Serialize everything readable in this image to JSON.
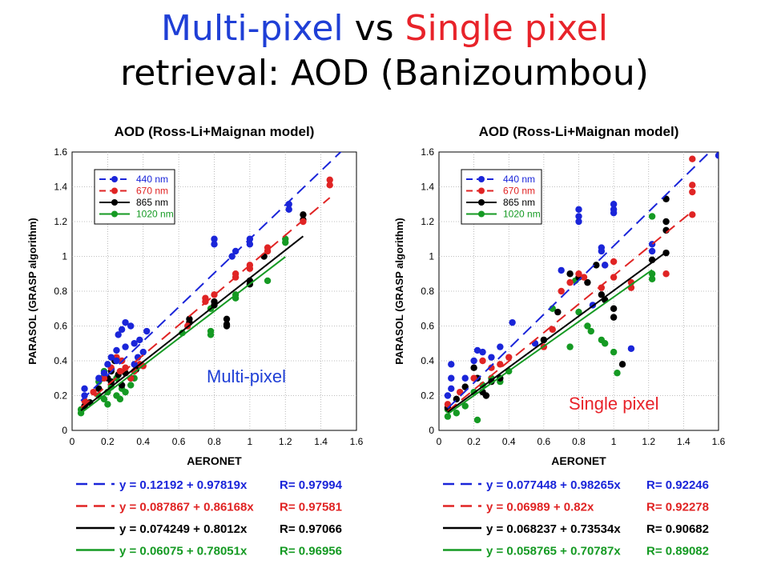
{
  "slide": {
    "title_part1": "Multi-pixel",
    "title_vs": " vs ",
    "title_part2": "Single pixel",
    "title_line2": "retrieval: AOD (Banizoumbou)",
    "title_colors": {
      "part1": "#1f3fd6",
      "part2": "#e8232a",
      "text": "#000000"
    }
  },
  "chart_data": [
    {
      "type": "scatter",
      "title": "AOD (Ross-Li+Maignan model)",
      "xlabel": "AERONET",
      "ylabel": "PARASOL (GRASP algorithm)",
      "xlim": [
        0,
        1.6
      ],
      "ylim": [
        0,
        1.6
      ],
      "xticks": [
        "0",
        "0.2",
        "0.4",
        "0.6",
        "0.8",
        "1",
        "1.2",
        "1.4",
        "1.6"
      ],
      "yticks": [
        "0",
        "0.2",
        "0.4",
        "0.6",
        "0.8",
        "1",
        "1.2",
        "1.4",
        "1.6"
      ],
      "grid": true,
      "legend_placement": "top-left",
      "annotation": "Multi-pixel",
      "annotation_color": "#1f3fd6",
      "series": [
        {
          "name": "440 nm",
          "color": "#1a25d9",
          "intercept": 0.12192,
          "slope": 0.97819,
          "fit_x": [
            0.05,
            1.6
          ],
          "equation": "y = 0.12192 + 0.97819x",
          "r": "R= 0.97994",
          "points": [
            [
              0.07,
              0.2
            ],
            [
              0.07,
              0.24
            ],
            [
              0.15,
              0.3
            ],
            [
              0.18,
              0.33
            ],
            [
              0.2,
              0.38
            ],
            [
              0.22,
              0.42
            ],
            [
              0.25,
              0.46
            ],
            [
              0.26,
              0.55
            ],
            [
              0.28,
              0.58
            ],
            [
              0.3,
              0.62
            ],
            [
              0.33,
              0.6
            ],
            [
              0.35,
              0.5
            ],
            [
              0.38,
              0.52
            ],
            [
              0.4,
              0.45
            ],
            [
              0.42,
              0.57
            ],
            [
              0.8,
              1.1
            ],
            [
              0.8,
              1.07
            ],
            [
              0.9,
              1.0
            ],
            [
              0.92,
              1.03
            ],
            [
              1.0,
              1.07
            ],
            [
              1.0,
              1.1
            ],
            [
              1.22,
              1.3
            ],
            [
              1.22,
              1.27
            ],
            [
              0.25,
              0.4
            ],
            [
              0.3,
              0.48
            ],
            [
              0.37,
              0.42
            ],
            [
              0.35,
              0.38
            ]
          ]
        },
        {
          "name": "670 nm",
          "color": "#e02424",
          "intercept": 0.087867,
          "slope": 0.86168,
          "fit_x": [
            0.05,
            1.45
          ],
          "equation": "y = 0.087867 + 0.86168x",
          "r": "R= 0.97581",
          "points": [
            [
              0.07,
              0.17
            ],
            [
              0.12,
              0.22
            ],
            [
              0.18,
              0.3
            ],
            [
              0.22,
              0.36
            ],
            [
              0.25,
              0.42
            ],
            [
              0.28,
              0.4
            ],
            [
              0.3,
              0.36
            ],
            [
              0.35,
              0.34
            ],
            [
              0.38,
              0.38
            ],
            [
              0.4,
              0.37
            ],
            [
              0.65,
              0.6
            ],
            [
              0.75,
              0.74
            ],
            [
              0.75,
              0.76
            ],
            [
              0.8,
              0.78
            ],
            [
              0.92,
              0.9
            ],
            [
              0.92,
              0.88
            ],
            [
              1.0,
              0.93
            ],
            [
              1.0,
              0.95
            ],
            [
              1.1,
              1.05
            ],
            [
              1.1,
              1.03
            ],
            [
              1.3,
              1.2
            ],
            [
              1.45,
              1.44
            ],
            [
              1.45,
              1.41
            ],
            [
              0.27,
              0.34
            ],
            [
              0.33,
              0.3
            ]
          ]
        },
        {
          "name": "865 nm",
          "color": "#000000",
          "intercept": 0.074249,
          "slope": 0.8012,
          "fit_x": [
            0.05,
            1.3
          ],
          "equation": "y = 0.074249 + 0.8012x",
          "r": "R= 0.97066",
          "points": [
            [
              0.07,
              0.14
            ],
            [
              0.1,
              0.16
            ],
            [
              0.15,
              0.24
            ],
            [
              0.2,
              0.3
            ],
            [
              0.22,
              0.34
            ],
            [
              0.24,
              0.4
            ],
            [
              0.26,
              0.32
            ],
            [
              0.3,
              0.33
            ],
            [
              0.33,
              0.3
            ],
            [
              0.36,
              0.35
            ],
            [
              0.66,
              0.62
            ],
            [
              0.66,
              0.64
            ],
            [
              0.8,
              0.74
            ],
            [
              0.8,
              0.72
            ],
            [
              0.87,
              0.64
            ],
            [
              0.87,
              0.61
            ],
            [
              0.87,
              0.6
            ],
            [
              1.0,
              0.86
            ],
            [
              1.0,
              0.84
            ],
            [
              1.08,
              1.0
            ],
            [
              1.3,
              1.24
            ],
            [
              1.3,
              1.21
            ],
            [
              0.22,
              0.28
            ],
            [
              0.28,
              0.26
            ]
          ]
        },
        {
          "name": "1020 nm",
          "color": "#159a23",
          "intercept": 0.06075,
          "slope": 0.78051,
          "fit_x": [
            0.05,
            1.2
          ],
          "equation": "y = 0.06075 + 0.78051x",
          "r": "R= 0.96956",
          "points": [
            [
              0.05,
              0.1
            ],
            [
              0.05,
              0.12
            ],
            [
              0.1,
              0.16
            ],
            [
              0.15,
              0.2
            ],
            [
              0.15,
              0.28
            ],
            [
              0.17,
              0.3
            ],
            [
              0.18,
              0.34
            ],
            [
              0.2,
              0.22
            ],
            [
              0.22,
              0.25
            ],
            [
              0.25,
              0.2
            ],
            [
              0.25,
              0.3
            ],
            [
              0.28,
              0.24
            ],
            [
              0.3,
              0.22
            ],
            [
              0.33,
              0.26
            ],
            [
              0.35,
              0.3
            ],
            [
              0.62,
              0.56
            ],
            [
              0.78,
              0.7
            ],
            [
              0.78,
              0.57
            ],
            [
              0.78,
              0.55
            ],
            [
              0.92,
              0.78
            ],
            [
              0.92,
              0.76
            ],
            [
              1.1,
              0.86
            ],
            [
              1.2,
              1.08
            ],
            [
              1.2,
              1.1
            ],
            [
              0.18,
              0.18
            ],
            [
              0.2,
              0.15
            ],
            [
              0.27,
              0.18
            ]
          ]
        }
      ]
    },
    {
      "type": "scatter",
      "title": "AOD (Ross-Li+Maignan model)",
      "xlabel": "AERONET",
      "ylabel": "PARASOL (GRASP algorithm)",
      "xlim": [
        0,
        1.6
      ],
      "ylim": [
        0,
        1.6
      ],
      "xticks": [
        "0",
        "0.2",
        "0.4",
        "0.6",
        "0.8",
        "1",
        "1.2",
        "1.4",
        "1.6"
      ],
      "yticks": [
        "0",
        "0.2",
        "0.4",
        "0.6",
        "0.8",
        "1",
        "1.2",
        "1.4",
        "1.6"
      ],
      "grid": true,
      "legend_placement": "top-left",
      "annotation": "Single pixel",
      "annotation_color": "#e8232a",
      "series": [
        {
          "name": "440 nm",
          "color": "#1a25d9",
          "intercept": 0.077448,
          "slope": 0.98265,
          "fit_x": [
            0.05,
            1.6
          ],
          "equation": "y = 0.077448 + 0.98265x",
          "r": "R= 0.92246",
          "points": [
            [
              0.05,
              0.2
            ],
            [
              0.07,
              0.24
            ],
            [
              0.07,
              0.3
            ],
            [
              0.07,
              0.38
            ],
            [
              0.15,
              0.3
            ],
            [
              0.2,
              0.4
            ],
            [
              0.22,
              0.46
            ],
            [
              0.25,
              0.45
            ],
            [
              0.3,
              0.42
            ],
            [
              0.35,
              0.48
            ],
            [
              0.42,
              0.62
            ],
            [
              0.55,
              0.5
            ],
            [
              0.7,
              0.92
            ],
            [
              0.8,
              1.27
            ],
            [
              0.8,
              1.23
            ],
            [
              0.8,
              1.2
            ],
            [
              0.93,
              1.05
            ],
            [
              0.93,
              1.03
            ],
            [
              1.0,
              1.3
            ],
            [
              1.0,
              1.27
            ],
            [
              1.0,
              1.25
            ],
            [
              1.1,
              0.47
            ],
            [
              1.22,
              1.07
            ],
            [
              1.22,
              1.03
            ],
            [
              1.6,
              1.58
            ],
            [
              0.95,
              0.95
            ],
            [
              0.88,
              0.72
            ]
          ]
        },
        {
          "name": "670 nm",
          "color": "#e02424",
          "intercept": 0.06989,
          "slope": 0.82,
          "fit_x": [
            0.05,
            1.45
          ],
          "equation": "y = 0.06989 + 0.82x",
          "r": "R= 0.92278",
          "points": [
            [
              0.05,
              0.15
            ],
            [
              0.12,
              0.22
            ],
            [
              0.2,
              0.3
            ],
            [
              0.25,
              0.4
            ],
            [
              0.3,
              0.36
            ],
            [
              0.35,
              0.38
            ],
            [
              0.4,
              0.42
            ],
            [
              0.6,
              0.48
            ],
            [
              0.7,
              0.8
            ],
            [
              0.75,
              0.85
            ],
            [
              0.8,
              0.9
            ],
            [
              0.83,
              0.88
            ],
            [
              0.93,
              0.82
            ],
            [
              0.95,
              0.95
            ],
            [
              1.0,
              0.97
            ],
            [
              1.0,
              0.88
            ],
            [
              1.1,
              0.85
            ],
            [
              1.1,
              0.82
            ],
            [
              1.3,
              0.9
            ],
            [
              1.45,
              1.56
            ],
            [
              1.45,
              1.41
            ],
            [
              1.45,
              1.37
            ],
            [
              1.45,
              1.24
            ],
            [
              0.65,
              0.58
            ]
          ]
        },
        {
          "name": "865 nm",
          "color": "#000000",
          "intercept": 0.068237,
          "slope": 0.73534,
          "fit_x": [
            0.05,
            1.3
          ],
          "equation": "y = 0.068237 + 0.73534x",
          "r": "R= 0.90682",
          "points": [
            [
              0.05,
              0.13
            ],
            [
              0.1,
              0.18
            ],
            [
              0.15,
              0.25
            ],
            [
              0.2,
              0.36
            ],
            [
              0.22,
              0.3
            ],
            [
              0.25,
              0.22
            ],
            [
              0.27,
              0.2
            ],
            [
              0.3,
              0.28
            ],
            [
              0.35,
              0.3
            ],
            [
              0.6,
              0.52
            ],
            [
              0.75,
              0.9
            ],
            [
              0.8,
              0.88
            ],
            [
              0.85,
              0.85
            ],
            [
              0.9,
              0.95
            ],
            [
              0.93,
              0.78
            ],
            [
              0.95,
              0.75
            ],
            [
              1.0,
              0.7
            ],
            [
              1.0,
              0.65
            ],
            [
              1.05,
              0.38
            ],
            [
              1.22,
              0.98
            ],
            [
              1.3,
              1.33
            ],
            [
              1.3,
              1.2
            ],
            [
              1.3,
              1.15
            ],
            [
              1.3,
              1.02
            ],
            [
              0.68,
              0.68
            ]
          ]
        },
        {
          "name": "1020 nm",
          "color": "#159a23",
          "intercept": 0.058765,
          "slope": 0.70787,
          "fit_x": [
            0.05,
            1.22
          ],
          "equation": "y = 0.058765 + 0.70787x",
          "r": "R= 0.89082",
          "points": [
            [
              0.05,
              0.12
            ],
            [
              0.05,
              0.08
            ],
            [
              0.1,
              0.1
            ],
            [
              0.15,
              0.14
            ],
            [
              0.2,
              0.22
            ],
            [
              0.22,
              0.06
            ],
            [
              0.25,
              0.26
            ],
            [
              0.3,
              0.3
            ],
            [
              0.35,
              0.28
            ],
            [
              0.4,
              0.34
            ],
            [
              0.6,
              0.52
            ],
            [
              0.65,
              0.7
            ],
            [
              0.75,
              0.48
            ],
            [
              0.78,
              0.86
            ],
            [
              0.8,
              0.68
            ],
            [
              0.85,
              0.6
            ],
            [
              0.87,
              0.57
            ],
            [
              0.93,
              0.52
            ],
            [
              0.95,
              0.5
            ],
            [
              1.0,
              0.45
            ],
            [
              1.02,
              0.33
            ],
            [
              1.22,
              1.23
            ],
            [
              1.22,
              0.9
            ],
            [
              1.22,
              0.87
            ]
          ]
        }
      ]
    }
  ]
}
